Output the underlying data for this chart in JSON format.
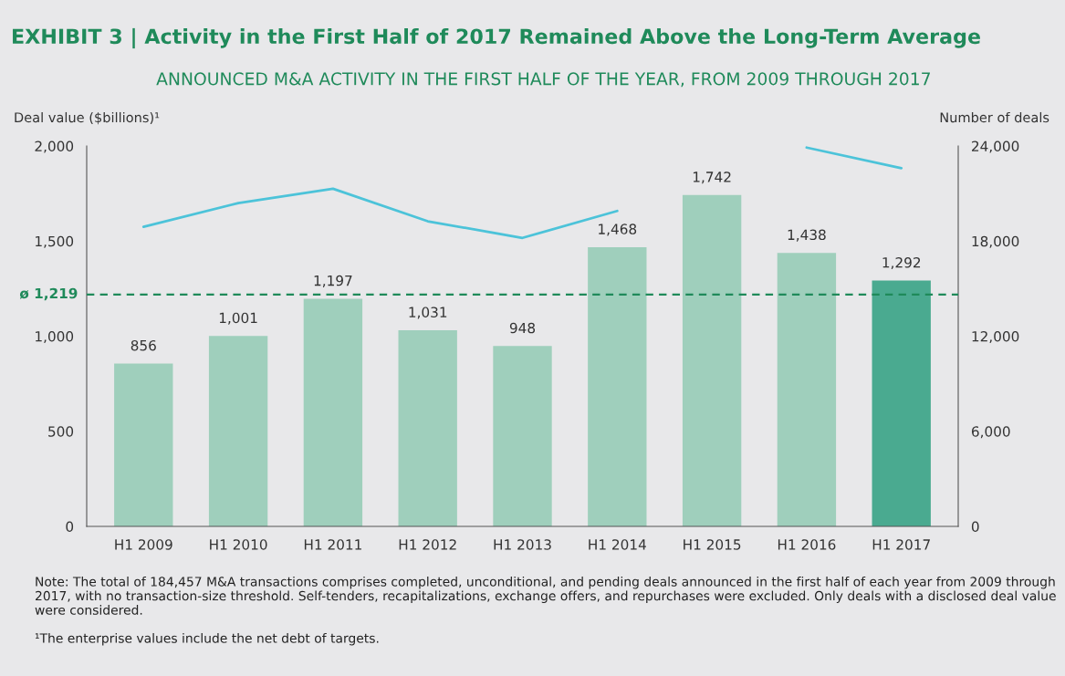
{
  "chart_data": {
    "type": "bar",
    "title": "EXHIBIT 3 | Activity in the First Half of 2017 Remained Above the Long-Term Average",
    "subtitle": "ANNOUNCED M&A ACTIVITY IN THE FIRST HALF OF THE YEAR, FROM 2009 THROUGH 2017",
    "ylabel": "Deal value ($billions)¹",
    "y2label": "Number of deals",
    "categories": [
      "H1 2009",
      "H1 2010",
      "H1 2011",
      "H1 2012",
      "H1 2013",
      "H1 2014",
      "H1 2015",
      "H1 2016",
      "H1 2017"
    ],
    "series": [
      {
        "colors": [
          "#9fcfbc",
          "#9fcfbc",
          "#9fcfbc",
          "#9fcfbc",
          "#9fcfbc",
          "#9fcfbc",
          "#9fcfbc",
          "#9fcfbc",
          "#4aaa90"
        ],
        "values": [
          856,
          1001,
          1197,
          1031,
          948,
          1468,
          1742,
          1438,
          1292
        ],
        "value_labels": [
          "856",
          "1,001",
          "1,197",
          "1,031",
          "948",
          "1,468",
          "1,742",
          "1,438",
          "1,292"
        ]
      },
      {
        "type": "line",
        "axis": "y2",
        "color": "#4cc3d9",
        "values": [
          18900,
          20400,
          21300,
          19250,
          18200,
          19900,
          null,
          23900,
          22600
        ]
      }
    ],
    "ylim": [
      0,
      2000
    ],
    "yticks": [
      {
        "value": 0,
        "label": "0"
      },
      {
        "value": 500,
        "label": "500"
      },
      {
        "value": 1000,
        "label": "1,000"
      },
      {
        "value": 1500,
        "label": "1,500"
      },
      {
        "value": 2000,
        "label": "2,000"
      }
    ],
    "y2lim": [
      0,
      24000
    ],
    "y2ticks": [
      {
        "value": 0,
        "label": "0"
      },
      {
        "value": 6000,
        "label": "6,000"
      },
      {
        "value": 12000,
        "label": "12,000"
      },
      {
        "value": 18000,
        "label": "18,000"
      },
      {
        "value": 24000,
        "label": "24,000"
      }
    ],
    "ref_lines": [
      {
        "axis": "y",
        "value": 1219,
        "label": "ø 1,219",
        "color": "#1f8a5a",
        "line_style": "dashed"
      }
    ],
    "grid": false,
    "legend": false,
    "annotations": [
      "Note: The total of 184,457 M&A transactions comprises completed, unconditional, and pending deals announced in the first half of each year from 2009 through 2017, with no transaction-size threshold. Self-tenders, recapitalizations, exchange offers, and repurchases were excluded. Only deals with a disclosed deal value were considered.",
      "¹The enterprise values include the net debt of targets."
    ]
  }
}
